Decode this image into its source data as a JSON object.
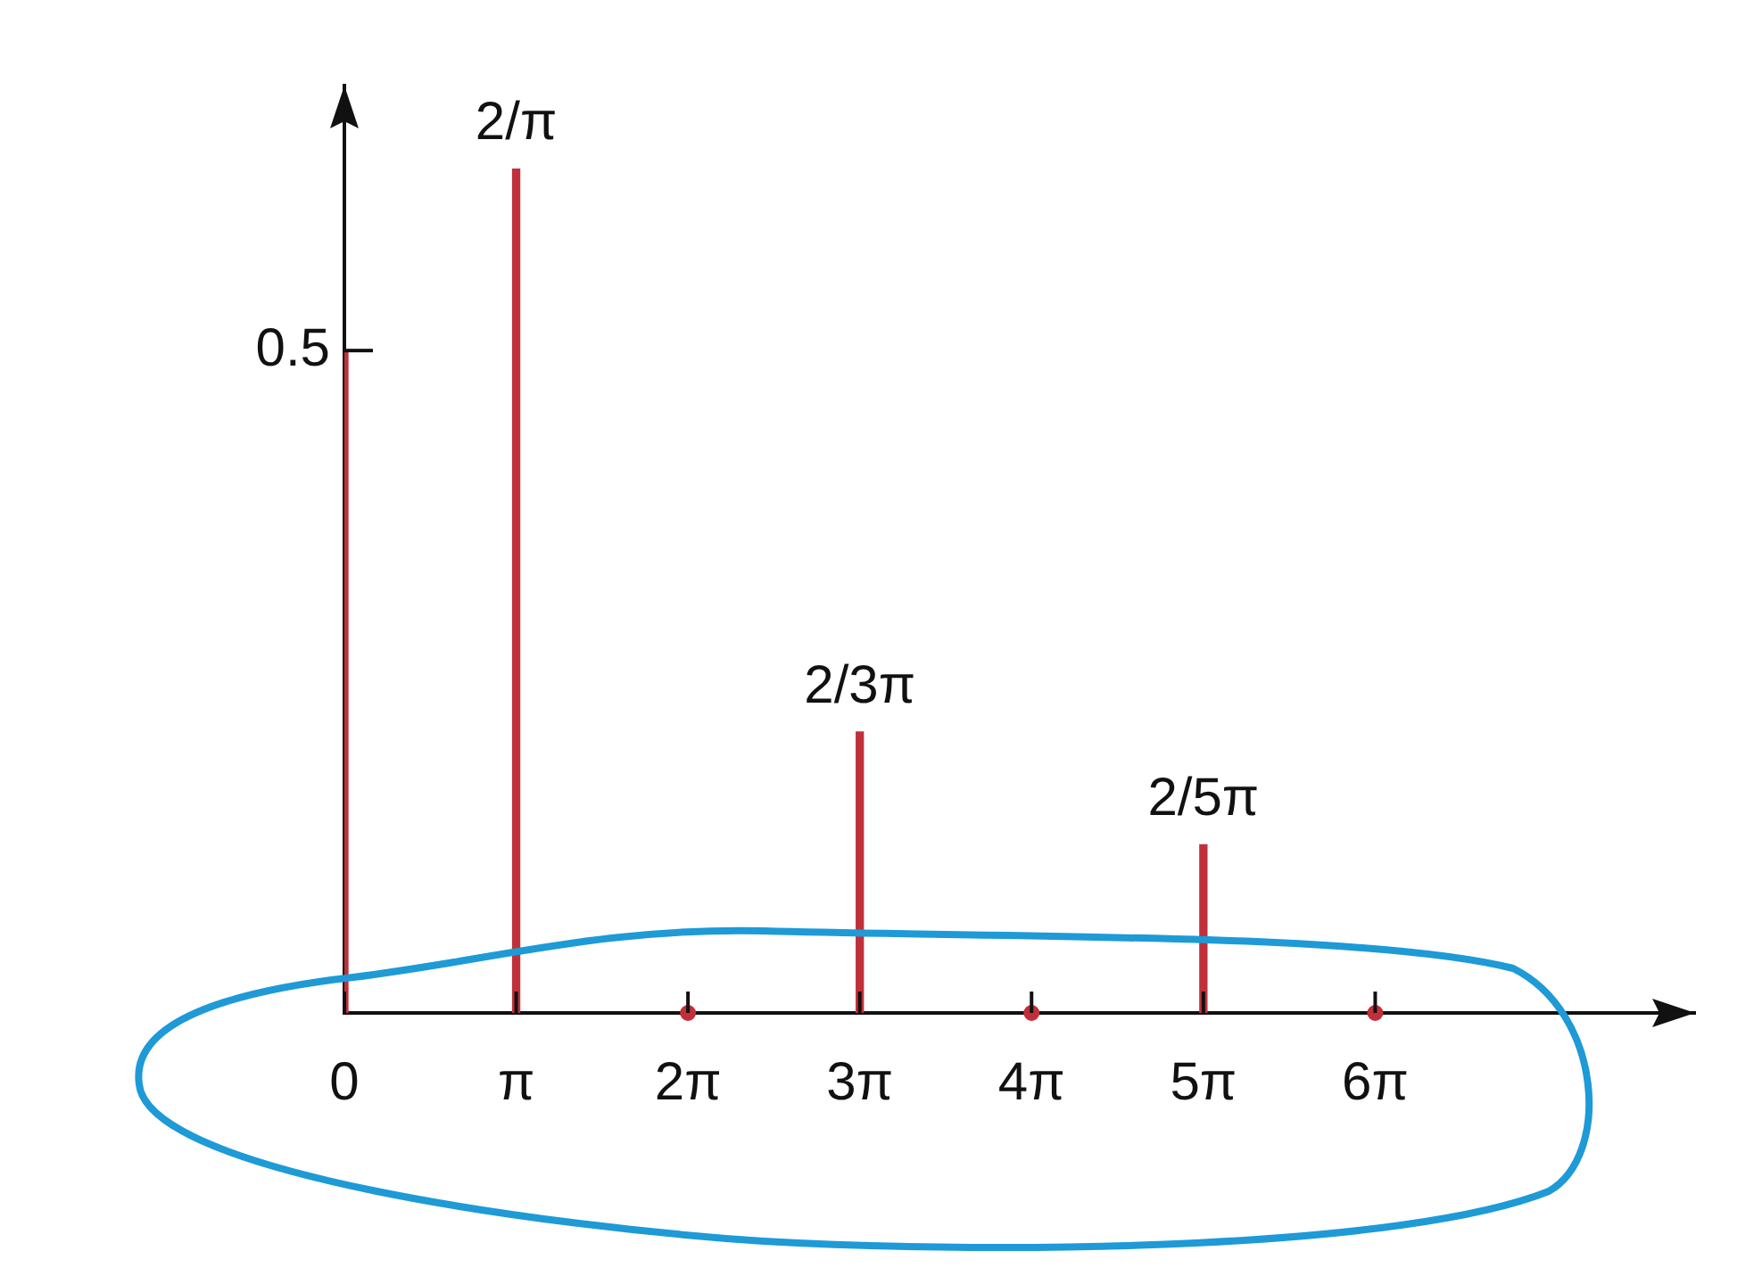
{
  "chart_data": {
    "type": "bar",
    "series": [
      {
        "type": "bar",
        "color": "#c1303a",
        "x": [
          0,
          3.1416,
          9.4248,
          15.708
        ],
        "values": [
          0.5,
          0.637,
          0.212,
          0.127
        ]
      },
      {
        "type": "scatter",
        "color": "#c1303a",
        "x": [
          6.2832,
          12.566,
          18.85
        ],
        "values": [
          0,
          0,
          0
        ]
      }
    ],
    "annotations": [
      {
        "text": "2/π",
        "x": 3.1416,
        "y": 0.637
      },
      {
        "text": "2/3π",
        "x": 9.4248,
        "y": 0.212
      },
      {
        "text": "2/5π",
        "x": 15.708,
        "y": 0.127
      }
    ],
    "xlim": [
      0,
      24.7
    ],
    "xticks": [
      {
        "value": 0,
        "label": "0"
      },
      {
        "value": 3.1416,
        "label": "π"
      },
      {
        "value": 6.2832,
        "label": "2π"
      },
      {
        "value": 9.4248,
        "label": "3π"
      },
      {
        "value": 12.566,
        "label": "4π"
      },
      {
        "value": 15.708,
        "label": "5π"
      },
      {
        "value": 18.85,
        "label": "6π"
      }
    ],
    "ylim": [
      0,
      0.7
    ],
    "yticks": [
      0.5
    ],
    "grid": false,
    "legend": false
  }
}
